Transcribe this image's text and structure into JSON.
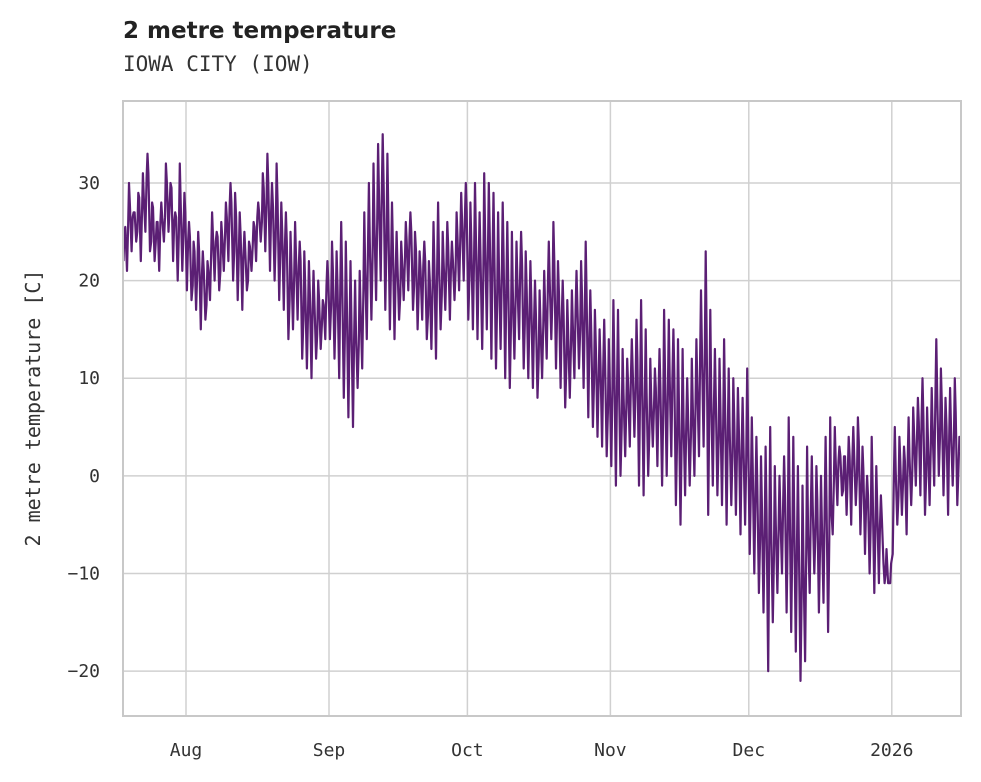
{
  "chart_data": {
    "type": "line",
    "title": "2 metre temperature",
    "subtitle": "IOWA CITY (IOW)",
    "xlabel": "",
    "ylabel": "2 metre temperature [C]",
    "ylim": [
      -24.6,
      38.4
    ],
    "yticks": [
      30,
      20,
      10,
      0,
      -10,
      -20
    ],
    "ytick_labels": [
      "30",
      "20",
      "10",
      "0",
      "−10",
      "−20"
    ],
    "xticks": [
      {
        "label": "Aug",
        "day": 14
      },
      {
        "label": "Sep",
        "day": 45
      },
      {
        "label": "Oct",
        "day": 75
      },
      {
        "label": "Nov",
        "day": 106
      },
      {
        "label": "Dec",
        "day": 136
      },
      {
        "label": "2026",
        "day": 167
      }
    ],
    "start_date": "2025-07-18",
    "grid": true,
    "line_color": "#5b1f74",
    "series": [
      {
        "name": "daily_high",
        "values": [
          25,
          30,
          27,
          29,
          31,
          33,
          28,
          26,
          28,
          32,
          30,
          27,
          32,
          29,
          26,
          24,
          25,
          23,
          22,
          27,
          25,
          26,
          28,
          30,
          29,
          27,
          25,
          24,
          26,
          28,
          31,
          33,
          30,
          32,
          28,
          27,
          25,
          26,
          24,
          23,
          22,
          21,
          20,
          18,
          22,
          24,
          23,
          26,
          24,
          22,
          20,
          21,
          27,
          30,
          32,
          34,
          35,
          33,
          28,
          25,
          24,
          26,
          27,
          25,
          23,
          24,
          22,
          26,
          28,
          25,
          26,
          24,
          27,
          29,
          30,
          28,
          30,
          27,
          31,
          30,
          29,
          27,
          28,
          26,
          25,
          24,
          25,
          23,
          22,
          20,
          19,
          21,
          24,
          26,
          22,
          20,
          18,
          19,
          21,
          22,
          24,
          19,
          17,
          15,
          16,
          14,
          18,
          17,
          13,
          12,
          14,
          16,
          18,
          15,
          12,
          11,
          13,
          17,
          16,
          15,
          14,
          13,
          10,
          12,
          14,
          19,
          23,
          17,
          13,
          12,
          14,
          11,
          10,
          9,
          8,
          11,
          6,
          4,
          2,
          3,
          5,
          1,
          0,
          2,
          6,
          4,
          1,
          -1,
          3,
          2,
          1,
          0,
          4,
          6,
          5,
          3,
          2,
          4,
          5,
          6,
          3,
          0,
          4,
          1,
          -2,
          -10,
          -11,
          5,
          4,
          3,
          6,
          7,
          8,
          10,
          7,
          9,
          14,
          11,
          8,
          9,
          10,
          4
        ]
      },
      {
        "name": "daily_low",
        "values": [
          22,
          21,
          23,
          24,
          22,
          25,
          23,
          22,
          21,
          24,
          25,
          22,
          20,
          21,
          19,
          18,
          17,
          15,
          16,
          18,
          20,
          19,
          21,
          22,
          20,
          18,
          17,
          19,
          21,
          22,
          24,
          23,
          21,
          20,
          18,
          17,
          14,
          15,
          16,
          12,
          11,
          10,
          12,
          13,
          14,
          14,
          12,
          10,
          8,
          6,
          5,
          9,
          11,
          14,
          16,
          18,
          20,
          17,
          15,
          14,
          16,
          18,
          19,
          17,
          15,
          16,
          14,
          13,
          12,
          15,
          17,
          16,
          18,
          19,
          20,
          16,
          15,
          14,
          13,
          15,
          12,
          11,
          13,
          10,
          9,
          12,
          14,
          11,
          10,
          9,
          8,
          10,
          12,
          14,
          11,
          9,
          7,
          8,
          10,
          11,
          9,
          6,
          5,
          4,
          3,
          2,
          1,
          -1,
          0,
          2,
          3,
          4,
          -1,
          -2,
          0,
          3,
          1,
          -1,
          0,
          2,
          -3,
          -5,
          -2,
          -1,
          0,
          2,
          3,
          -4,
          -1,
          -2,
          -3,
          -5,
          -3,
          -4,
          -6,
          -5,
          -8,
          -10,
          -12,
          -14,
          -20,
          -15,
          -12,
          -10,
          -14,
          -16,
          -18,
          -21,
          -19,
          -12,
          -10,
          -14,
          -13,
          -16,
          -6,
          -3,
          -2,
          -4,
          -5,
          -3,
          -6,
          -8,
          -10,
          -12,
          -11,
          -9,
          -11,
          -8,
          -5,
          -4,
          -6,
          -3,
          -1,
          -2,
          -4,
          -3,
          -1,
          0,
          -2,
          -4,
          -1,
          -3
        ]
      }
    ]
  }
}
